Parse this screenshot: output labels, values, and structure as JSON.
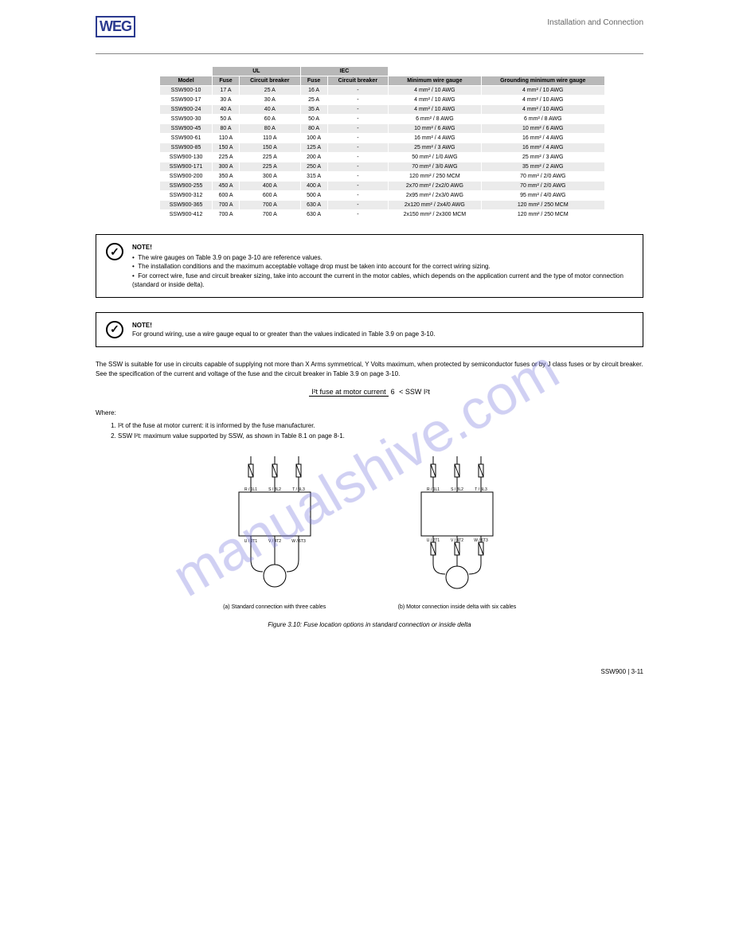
{
  "watermark": "manualshive.com",
  "header": {
    "logo": "WEG",
    "section": "Installation and Connection"
  },
  "table": {
    "group_headers": [
      "UL ",
      "IEC "
    ],
    "columns": [
      "Model",
      "Fuse",
      "Circuit breaker",
      "Fuse",
      "Circuit breaker",
      "Minimum wire gauge",
      "Grounding minimum wire gauge"
    ],
    "rows": [
      [
        "SSW900-10",
        "17 A",
        "25 A",
        "16 A",
        "-",
        "4 mm² / 10 AWG",
        "4 mm² / 10 AWG"
      ],
      [
        "SSW900-17",
        "30 A",
        "30 A",
        "25 A",
        "-",
        "4 mm² / 10 AWG",
        "4 mm² / 10 AWG"
      ],
      [
        "SSW900-24",
        "40 A",
        "40 A",
        "35 A",
        "-",
        "4 mm² / 10 AWG",
        "4 mm² / 10 AWG"
      ],
      [
        "SSW900-30",
        "50 A",
        "60 A",
        "50 A",
        "-",
        "6 mm² / 8 AWG",
        "6 mm² / 8 AWG"
      ],
      [
        "SSW900-45",
        "80 A",
        "80 A",
        "80 A",
        "-",
        "10 mm² / 6 AWG",
        "10 mm² / 6 AWG"
      ],
      [
        "SSW900-61",
        "110 A",
        "110 A",
        "100 A",
        "-",
        "16 mm² / 4 AWG",
        "16 mm² / 4 AWG"
      ],
      [
        "SSW900-85",
        "150 A",
        "150 A",
        "125 A",
        "-",
        "25 mm² / 3 AWG",
        "16 mm² / 4 AWG"
      ],
      [
        "SSW900-130",
        "225 A",
        "225 A",
        "200 A",
        "-",
        "50 mm² / 1/0 AWG",
        "25 mm² / 3 AWG"
      ],
      [
        "SSW900-171",
        "300 A",
        "225 A",
        "250 A",
        "-",
        "70 mm² / 3/0 AWG",
        "35 mm² / 2 AWG"
      ],
      [
        "SSW900-200",
        "350 A",
        "300 A",
        "315 A",
        "-",
        "120 mm² / 250 MCM",
        "70 mm² / 2/0 AWG"
      ],
      [
        "SSW900-255",
        "450 A",
        "400 A",
        "400 A",
        "-",
        "2x70 mm² / 2x2/0 AWG",
        "70 mm² / 2/0 AWG"
      ],
      [
        "SSW900-312",
        "600 A",
        "600 A",
        "500 A",
        "-",
        "2x95 mm² / 2x3/0 AWG",
        "95 mm² / 4/0 AWG"
      ],
      [
        "SSW900-365",
        "700 A",
        "700 A",
        "630 A",
        "-",
        "2x120 mm² / 2x4/0 AWG",
        "120 mm² / 250 MCM"
      ],
      [
        "SSW900-412",
        "700 A",
        "700 A",
        "630 A",
        "-",
        "2x150 mm² / 2x300 MCM",
        "120 mm² / 250 MCM"
      ]
    ]
  },
  "note1": {
    "title": "NOTE!",
    "lines": [
      "The wire gauges on Table 3.9 on page 3-10 are reference values.",
      "The installation conditions and the maximum acceptable voltage drop must be taken into account for the correct wiring sizing.",
      "For correct wire, fuse and circuit breaker sizing, take into account the current in the motor cables, which depends on the application current and the type of motor connection (standard or inside delta)."
    ]
  },
  "note2": {
    "title": "NOTE!",
    "text": "For ground wiring, use a wire gauge equal to or greater than the values indicated in Table 3.9 on page 3-10."
  },
  "para1": "The SSW is suitable for use in circuits capable of supplying not more than X Arms symmetrical, Y Volts maximum, when protected by semiconductor fuses or by J class fuses or by circuit breaker. See the specification of the current and voltage of the fuse and the circuit breaker in Table 3.9 on page 3-10.",
  "formula": {
    "lhs_num": "I²t fuse at motor current",
    "lhs_den": "6",
    "op": "<",
    "rhs": "SSW I²t"
  },
  "para2_intro": "Where:",
  "para2_items": [
    "I²t of the fuse at motor current: it is informed by the fuse manufacturer.",
    "SSW I²t: maximum value supported by SSW, as shown in Table 8.1 on page 8-1."
  ],
  "diagram": {
    "left_caption": "(a) Standard connection with three cables",
    "right_caption": "(b) Motor connection inside delta with six cables",
    "figure": "Figure 3.10: Fuse location options in standard connection or inside delta",
    "labels": {
      "r": "R / 1L1",
      "s": "S / 3L2",
      "t": "T / 5L3",
      "u": "U / 2T1",
      "v": "V / 4T2",
      "w": "W / 6T3"
    }
  },
  "footer": {
    "left": "SSW900 | 3-11",
    "right": ""
  }
}
